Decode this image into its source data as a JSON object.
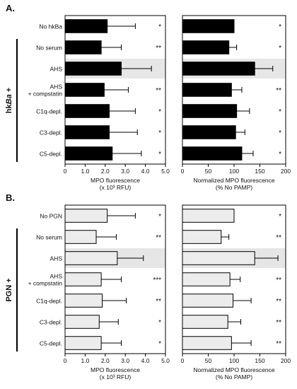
{
  "figure": {
    "panels": [
      {
        "letter": "A.",
        "group_label": "hkBa +",
        "group_label_prefix": "hk",
        "group_label_italic": "Ba",
        "group_label_suffix": " +",
        "bar_color": "#000000"
      },
      {
        "letter": "B.",
        "group_label": "PGN +",
        "group_label_prefix": "PGN +",
        "group_label_italic": "",
        "group_label_suffix": "",
        "bar_color": "#ececec"
      }
    ]
  },
  "chart_data": [
    {
      "type": "bar",
      "panel": "A.",
      "orientation": "horizontal",
      "categories": [
        "No hkBa",
        "No serum",
        "AHS",
        "AHS\n+ compstatin",
        "C1q-depl.",
        "C3-depl.",
        "C5-depl."
      ],
      "values": [
        2.1,
        1.8,
        2.8,
        1.95,
        2.2,
        2.2,
        2.35
      ],
      "errors": [
        1.4,
        1.0,
        1.5,
        1.2,
        1.3,
        1.4,
        1.45
      ],
      "significance": [
        "*",
        "**",
        "",
        "**",
        "*",
        "*",
        "*"
      ],
      "highlight_category": "AHS",
      "xlabel": "MPO fluorescence\n(x 10³ RFU)",
      "xlim": [
        0,
        5.0
      ],
      "xticks": [
        "0",
        "1.0",
        "2.0",
        "3.0",
        "4.0",
        "5.0"
      ]
    },
    {
      "type": "bar",
      "panel": "A.",
      "orientation": "horizontal",
      "categories": [
        "No hkBa",
        "No serum",
        "AHS",
        "AHS\n+ compstatin",
        "C1q-depl.",
        "C3-depl.",
        "C5-depl."
      ],
      "values": [
        100,
        90,
        140,
        95,
        105,
        103,
        115
      ],
      "errors": [
        0,
        15,
        35,
        20,
        25,
        18,
        22
      ],
      "significance": [
        "*",
        "*",
        "",
        "**",
        "*",
        "*",
        "*"
      ],
      "highlight_category": "AHS",
      "xlabel": "Normalized MPO fluorescence\n(% No PAMP)",
      "xlim": [
        0,
        200
      ],
      "xticks": [
        "0",
        "50",
        "100",
        "150",
        "200"
      ]
    },
    {
      "type": "bar",
      "panel": "B.",
      "orientation": "horizontal",
      "categories": [
        "No PGN",
        "No serum",
        "AHS",
        "AHS\n+ compstatin",
        "C1q-depl.",
        "C3-depl.",
        "C5-depl."
      ],
      "values": [
        2.1,
        1.55,
        2.6,
        1.8,
        1.85,
        1.7,
        1.8
      ],
      "errors": [
        1.4,
        1.0,
        1.3,
        1.0,
        1.2,
        0.95,
        1.0
      ],
      "significance": [
        "*",
        "**",
        "",
        "***",
        "**",
        "*",
        "*"
      ],
      "highlight_category": "AHS",
      "xlabel": "MPO fluorescence\n(x 10³ RFU)",
      "xlim": [
        0,
        5.0
      ],
      "xticks": [
        "0",
        "1.0",
        "2.0",
        "3.0",
        "4.0",
        "5.0"
      ]
    },
    {
      "type": "bar",
      "panel": "B.",
      "orientation": "horizontal",
      "categories": [
        "No PGN",
        "No serum",
        "AHS",
        "AHS\n+ compstatin",
        "C1q-depl.",
        "C3-depl.",
        "C5-depl."
      ],
      "values": [
        100,
        75,
        140,
        92,
        98,
        88,
        95
      ],
      "errors": [
        0,
        15,
        45,
        20,
        35,
        25,
        38
      ],
      "significance": [
        "*",
        "**",
        "",
        "**",
        "**",
        "**",
        "**"
      ],
      "highlight_category": "AHS",
      "xlabel": "Normalized MPO fluorescence\n(% No PAMP)",
      "xlim": [
        0,
        200
      ],
      "xticks": [
        "0",
        "50",
        "100",
        "150",
        "200"
      ]
    }
  ]
}
